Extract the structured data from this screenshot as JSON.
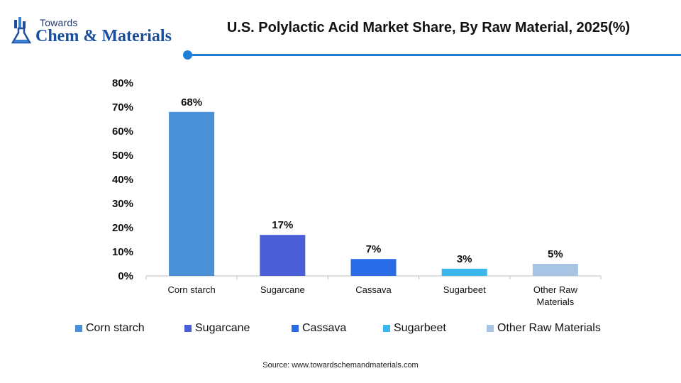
{
  "brand": {
    "top": "Towards",
    "main": "Chem & Materials"
  },
  "chart_data": {
    "type": "bar",
    "title": "U.S. Polylactic Acid Market Share, By Raw Material, 2025(%)",
    "categories": [
      "Corn starch",
      "Sugarcane",
      "Cassava",
      "Sugarbeet",
      "Other Raw Materials"
    ],
    "category_lines": [
      [
        "Corn starch"
      ],
      [
        "Sugarcane"
      ],
      [
        "Cassava"
      ],
      [
        "Sugarbeet"
      ],
      [
        "Other Raw",
        "Materials"
      ]
    ],
    "values": [
      68,
      17,
      7,
      3,
      5
    ],
    "data_labels": [
      "68%",
      "17%",
      "7%",
      "3%",
      "5%"
    ],
    "colors": [
      "#4a90d6",
      "#4a5ed8",
      "#2a6ce8",
      "#3ab8ee",
      "#a8c4e4"
    ],
    "yticks": [
      0,
      10,
      20,
      30,
      40,
      50,
      60,
      70,
      80
    ],
    "ytick_labels": [
      "0%",
      "10%",
      "20%",
      "30%",
      "40%",
      "50%",
      "60%",
      "70%",
      "80%"
    ],
    "ylim": [
      0,
      80
    ],
    "grid": false,
    "legend_position": "bottom",
    "legend": [
      "Corn starch",
      "Sugarcane",
      "Cassava",
      "Sugarbeet",
      "Other Raw Materials"
    ]
  },
  "source": "Source: www.towardschemandmaterials.com"
}
